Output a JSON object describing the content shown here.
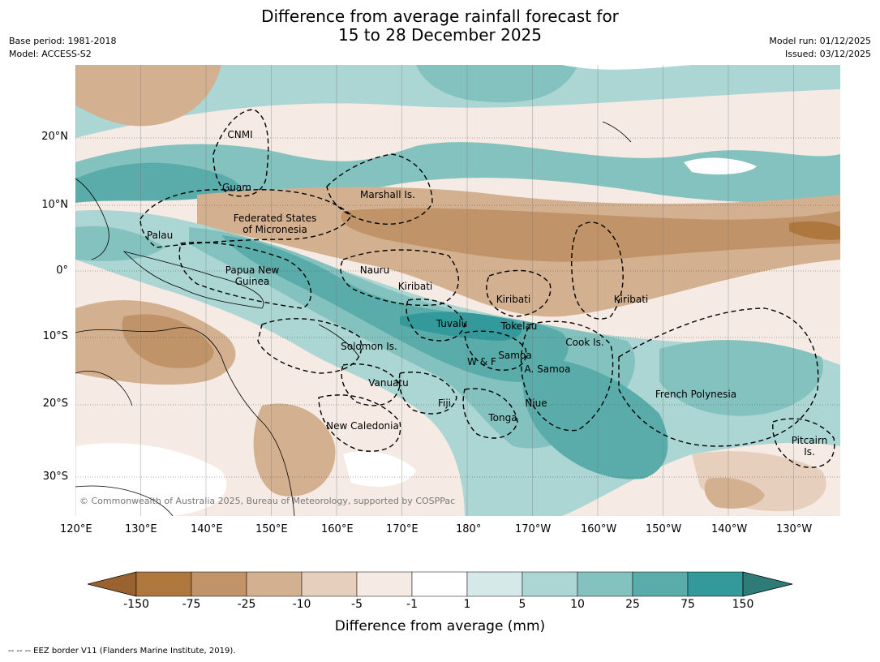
{
  "title_line1": "Difference from average rainfall forecast for",
  "title_line2": "15 to 28 December 2025",
  "base_period": "Base period: 1981-2018",
  "model": "Model: ACCESS-S2",
  "model_run": "Model run: 01/12/2025",
  "issued": "Issued: 03/12/2025",
  "copyright": "© Commonwealth of Australia 2025, Bureau of Meteorology, supported by COSPPac",
  "lon_labels": [
    "120°E",
    "130°E",
    "140°E",
    "150°E",
    "160°E",
    "170°E",
    "180°",
    "170°W",
    "160°W",
    "150°W",
    "140°W",
    "130°W"
  ],
  "lat_labels": [
    "20°N",
    "10°N",
    "0°",
    "10°S",
    "20°S",
    "30°S"
  ],
  "regions": [
    {
      "name": "CNMI"
    },
    {
      "name": "Guam"
    },
    {
      "name": "Marshall Is."
    },
    {
      "name": "Federated States"
    },
    {
      "name": "of Micronesia"
    },
    {
      "name": "Palau"
    },
    {
      "name": "Papua New"
    },
    {
      "name": "Guinea"
    },
    {
      "name": "Nauru"
    },
    {
      "name": "Kiribati"
    },
    {
      "name": "Kiribati"
    },
    {
      "name": "Kiribati"
    },
    {
      "name": "Tuvalu"
    },
    {
      "name": "Tokelau"
    },
    {
      "name": "Cook Is."
    },
    {
      "name": "Solomon Is."
    },
    {
      "name": "Samoa"
    },
    {
      "name": "W & F"
    },
    {
      "name": "A. Samoa"
    },
    {
      "name": "Vanuatu"
    },
    {
      "name": "Fiji"
    },
    {
      "name": "Niue"
    },
    {
      "name": "Tonga"
    },
    {
      "name": "French Polynesia"
    },
    {
      "name": "New Caledonia"
    },
    {
      "name": "Pitcairn"
    },
    {
      "name": "Is."
    }
  ],
  "colorbar": {
    "ticks": [
      "-150",
      "-75",
      "-25",
      "-10",
      "-5",
      "-1",
      "1",
      "5",
      "10",
      "25",
      "75",
      "150"
    ],
    "colors": [
      "#9a6230",
      "#ad773e",
      "#c09468",
      "#d3b08f",
      "#e6d0bd",
      "#f5ebe4",
      "#ffffff",
      "#d5eae8",
      "#abd6d3",
      "#83c2be",
      "#5aacaa",
      "#34999a",
      "#2f7b78"
    ],
    "label": "Difference from average (mm)"
  },
  "footer": "--  --  -- EEZ border V11 (Flanders Marine Institute, 2019)."
}
